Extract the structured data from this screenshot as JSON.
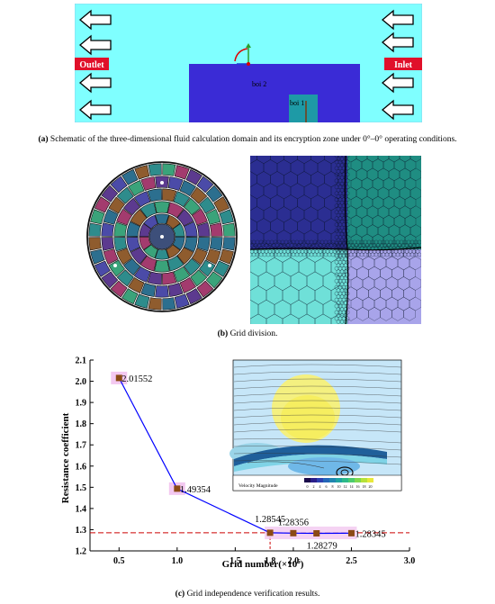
{
  "panel_a": {
    "outlet_label": "Outlet",
    "inlet_label": "Inlet",
    "boi2_label": "boi 2",
    "boi1_label": "boi 1",
    "colors": {
      "domain": "#7fffff",
      "boi2": "#3a2bd6",
      "boi1": "#1e9aa6",
      "label_bg": "#e0102a"
    }
  },
  "captions": {
    "a_tag": "(a)",
    "a_text": " Schematic of the three-dimensional fluid calculation domain and its encryption zone under 0°–0° operating conditions.",
    "b_tag": "(b)",
    "b_text": " Grid division.",
    "c_tag": "(c)",
    "c_text": " Grid independence verification results."
  },
  "inset": {
    "legend_title": "Velocity Magnitude",
    "legend_ticks": [
      "0",
      "2",
      "4",
      "6",
      "8",
      "10",
      "12",
      "14",
      "16",
      "18",
      "20"
    ]
  },
  "chart_data": {
    "type": "line",
    "xlabel_main": "Grid number(×10",
    "xlabel_sup": "6",
    "xlabel_tail": ")",
    "ylabel": "Resistance coefficient",
    "xlim": [
      0.25,
      3.0
    ],
    "ylim": [
      1.2,
      2.1
    ],
    "xticks": [
      "0.5",
      "1.0",
      "1.5",
      "2.0",
      "2.5",
      "3.0"
    ],
    "yticks": [
      "1.2",
      "1.3",
      "1.4",
      "1.5",
      "1.6",
      "1.7",
      "1.8",
      "1.9",
      "2.0",
      "2.1"
    ],
    "x": [
      0.5,
      1.0,
      1.8,
      2.0,
      2.2,
      2.5
    ],
    "y": [
      2.01552,
      1.49354,
      1.28545,
      1.28356,
      1.28279,
      1.28345
    ],
    "point_labels": [
      "2.01552",
      "1.49354",
      "1.28545",
      "1.28356",
      "1.28279",
      "1.28345"
    ],
    "tick_xlabels": [
      "1.8"
    ],
    "reference_y": 1.28545,
    "reference_x": 1.8,
    "colors": {
      "line": "#0000ff",
      "marker": "#8b4a14",
      "reference": "#cc0000",
      "highlight": "#f3c8f0"
    }
  }
}
